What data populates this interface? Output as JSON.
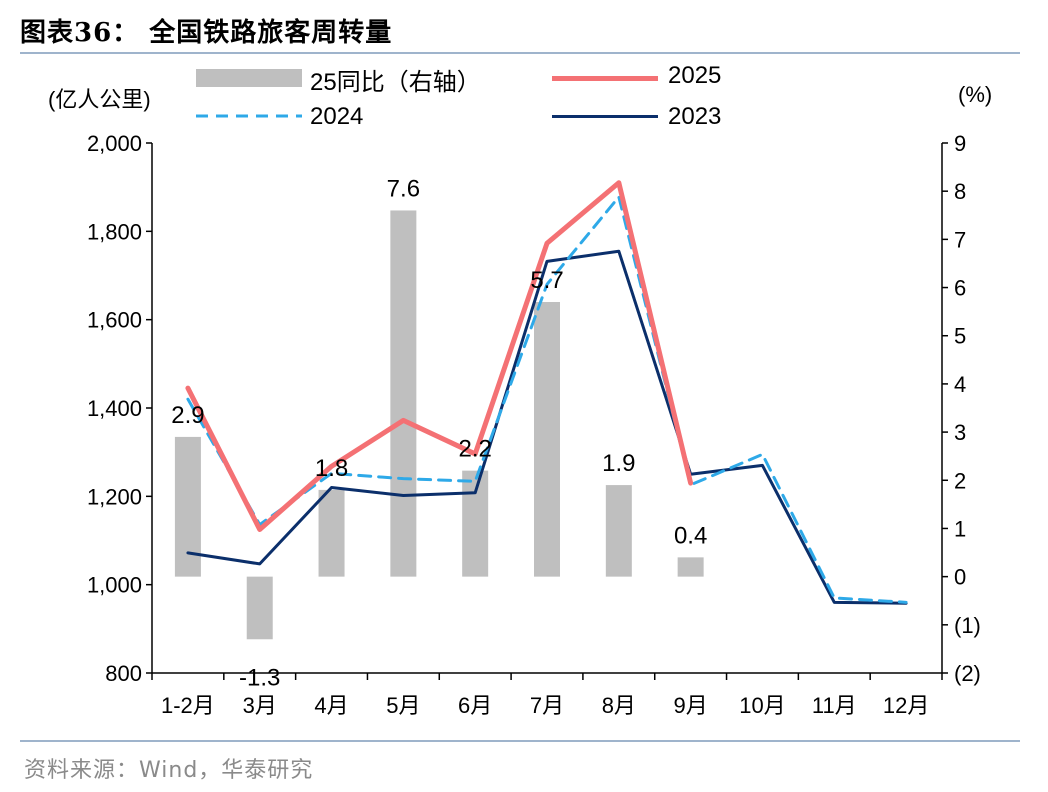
{
  "title": "图表36：  全国铁路旅客周转量",
  "source": "资料来源：Wind，华泰研究",
  "left_unit": "(亿人公里)",
  "right_unit": "(%)",
  "colors": {
    "bar": "#bfbfbf",
    "s2025": "#f47174",
    "s2024": "#2ea9e8",
    "s2023": "#0b2f6b",
    "rule": "#9fb4cc"
  },
  "chart_data": {
    "type": "bar+line",
    "categories": [
      "1-2月",
      "3月",
      "4月",
      "5月",
      "6月",
      "7月",
      "8月",
      "9月",
      "10月",
      "11月",
      "12月"
    ],
    "y_left": {
      "min": 800,
      "max": 2000,
      "ticks": [
        800,
        1000,
        1200,
        1400,
        1600,
        1800,
        2000
      ],
      "tick_labels": [
        "800",
        "1,000",
        "1,200",
        "1,400",
        "1,600",
        "1,800",
        "2,000"
      ]
    },
    "y_right": {
      "min": -2,
      "max": 9,
      "ticks": [
        -2,
        -1,
        0,
        1,
        2,
        3,
        4,
        5,
        6,
        7,
        8,
        9
      ],
      "tick_labels": [
        "(2)",
        "(1)",
        "0",
        "1",
        "2",
        "3",
        "4",
        "5",
        "6",
        "7",
        "8",
        "9"
      ]
    },
    "bars": {
      "name": "25同比（右轴）",
      "values": [
        2.9,
        -1.3,
        1.8,
        7.6,
        2.2,
        5.7,
        1.9,
        0.4,
        null,
        null,
        null
      ],
      "labels": [
        "2.9",
        "-1.3",
        "1.8",
        "7.6",
        "2.2",
        "5.7",
        "1.9",
        "0.4",
        "",
        "",
        ""
      ]
    },
    "series": [
      {
        "name": "2025",
        "style": "solid",
        "color": "#f47174",
        "values": [
          1445,
          1125,
          1268,
          1372,
          1296,
          1773,
          1910,
          1230,
          null,
          null,
          null
        ]
      },
      {
        "name": "2024",
        "style": "dashed",
        "color": "#2ea9e8",
        "values": [
          1420,
          1136,
          1252,
          1240,
          1234,
          1680,
          1878,
          1226,
          1295,
          970,
          960
        ]
      },
      {
        "name": "2023",
        "style": "solid",
        "color": "#0b2f6b",
        "values": [
          1072,
          1047,
          1220,
          1202,
          1208,
          1732,
          1755,
          1250,
          1270,
          960,
          958
        ]
      }
    ],
    "legend": [
      "25同比（右轴）",
      "2025",
      "2024",
      "2023"
    ]
  }
}
